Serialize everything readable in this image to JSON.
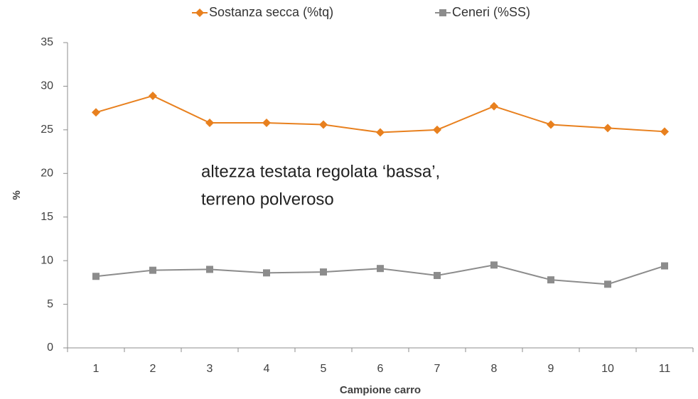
{
  "chart_data": {
    "type": "line",
    "categories": [
      "1",
      "2",
      "3",
      "4",
      "5",
      "6",
      "7",
      "8",
      "9",
      "10",
      "11"
    ],
    "series": [
      {
        "name": "Sostanza secca (%tq)",
        "color": "#e8801e",
        "marker": "diamond",
        "values": [
          27.0,
          28.9,
          25.8,
          25.8,
          25.6,
          24.7,
          25.0,
          27.7,
          25.6,
          25.2,
          24.8
        ]
      },
      {
        "name": "Ceneri (%SS)",
        "color": "#8c8c8c",
        "marker": "square",
        "values": [
          8.2,
          8.9,
          9.0,
          8.6,
          8.7,
          9.1,
          8.3,
          9.5,
          7.8,
          7.3,
          9.4
        ]
      }
    ],
    "ylim": [
      0,
      35
    ],
    "yticks": [
      0,
      5,
      10,
      15,
      20,
      25,
      30,
      35
    ],
    "ylabel": "%",
    "xlabel": "Campione carro",
    "annotation": [
      "altezza testata regolata ‘bassa’,",
      "terreno polveroso"
    ],
    "legend": "top",
    "grid": false
  }
}
